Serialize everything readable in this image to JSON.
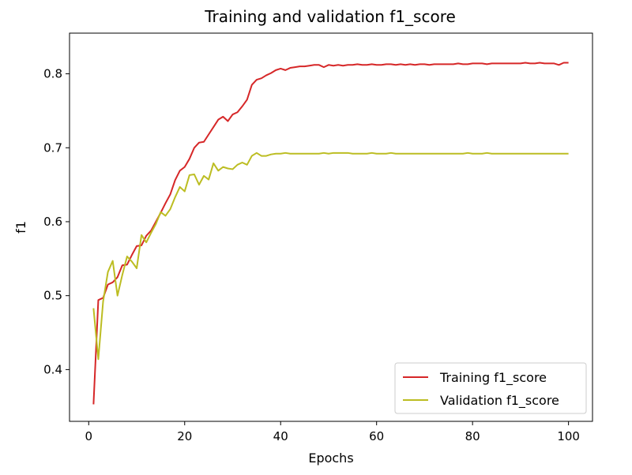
{
  "chart_data": {
    "type": "line",
    "title": "Training and validation f1_score",
    "xlabel": "Epochs",
    "ylabel": "f1",
    "xlim": [
      -4,
      105
    ],
    "ylim": [
      0.33,
      0.855
    ],
    "xticks": [
      0,
      20,
      40,
      60,
      80,
      100
    ],
    "yticks": [
      0.4,
      0.5,
      0.6,
      0.7,
      0.8
    ],
    "xtick_labels": [
      "0",
      "20",
      "40",
      "60",
      "80",
      "100"
    ],
    "ytick_labels": [
      "0.4",
      "0.5",
      "0.6",
      "0.7",
      "0.8"
    ],
    "grid": false,
    "legend_position": "lower-right",
    "x": [
      1,
      2,
      3,
      4,
      5,
      6,
      7,
      8,
      9,
      10,
      11,
      12,
      13,
      14,
      15,
      16,
      17,
      18,
      19,
      20,
      21,
      22,
      23,
      24,
      25,
      26,
      27,
      28,
      29,
      30,
      31,
      32,
      33,
      34,
      35,
      36,
      37,
      38,
      39,
      40,
      41,
      42,
      43,
      44,
      45,
      46,
      47,
      48,
      49,
      50,
      51,
      52,
      53,
      54,
      55,
      56,
      57,
      58,
      59,
      60,
      61,
      62,
      63,
      64,
      65,
      66,
      67,
      68,
      69,
      70,
      71,
      72,
      73,
      74,
      75,
      76,
      77,
      78,
      79,
      80,
      81,
      82,
      83,
      84,
      85,
      86,
      87,
      88,
      89,
      90,
      91,
      92,
      93,
      94,
      95,
      96,
      97,
      98,
      99,
      100
    ],
    "series": [
      {
        "name": "Training f1_score",
        "color": "#d62728",
        "values": [
          0.353,
          0.494,
          0.497,
          0.515,
          0.518,
          0.525,
          0.541,
          0.542,
          0.555,
          0.567,
          0.568,
          0.581,
          0.588,
          0.6,
          0.612,
          0.625,
          0.637,
          0.656,
          0.669,
          0.674,
          0.685,
          0.7,
          0.707,
          0.708,
          0.718,
          0.728,
          0.738,
          0.742,
          0.736,
          0.745,
          0.748,
          0.756,
          0.765,
          0.785,
          0.792,
          0.794,
          0.798,
          0.801,
          0.805,
          0.807,
          0.805,
          0.808,
          0.809,
          0.81,
          0.81,
          0.811,
          0.812,
          0.812,
          0.809,
          0.812,
          0.811,
          0.812,
          0.811,
          0.812,
          0.812,
          0.813,
          0.812,
          0.812,
          0.813,
          0.812,
          0.812,
          0.813,
          0.813,
          0.812,
          0.813,
          0.812,
          0.813,
          0.812,
          0.813,
          0.813,
          0.812,
          0.813,
          0.813,
          0.813,
          0.813,
          0.813,
          0.814,
          0.813,
          0.813,
          0.814,
          0.814,
          0.814,
          0.813,
          0.814,
          0.814,
          0.814,
          0.814,
          0.814,
          0.814,
          0.814,
          0.815,
          0.814,
          0.814,
          0.815,
          0.814,
          0.814,
          0.814,
          0.812,
          0.815,
          0.815
        ]
      },
      {
        "name": "Validation f1_score",
        "color": "#bcbd22",
        "values": [
          0.483,
          0.414,
          0.492,
          0.532,
          0.547,
          0.5,
          0.528,
          0.553,
          0.546,
          0.537,
          0.582,
          0.572,
          0.585,
          0.597,
          0.613,
          0.608,
          0.617,
          0.633,
          0.647,
          0.641,
          0.663,
          0.664,
          0.65,
          0.662,
          0.657,
          0.679,
          0.669,
          0.674,
          0.672,
          0.671,
          0.677,
          0.68,
          0.677,
          0.689,
          0.693,
          0.689,
          0.689,
          0.691,
          0.692,
          0.692,
          0.693,
          0.692,
          0.692,
          0.692,
          0.692,
          0.692,
          0.692,
          0.692,
          0.693,
          0.692,
          0.693,
          0.693,
          0.693,
          0.693,
          0.692,
          0.692,
          0.692,
          0.692,
          0.693,
          0.692,
          0.692,
          0.692,
          0.693,
          0.692,
          0.692,
          0.692,
          0.692,
          0.692,
          0.692,
          0.692,
          0.692,
          0.692,
          0.692,
          0.692,
          0.692,
          0.692,
          0.692,
          0.692,
          0.693,
          0.692,
          0.692,
          0.692,
          0.693,
          0.692,
          0.692,
          0.692,
          0.692,
          0.692,
          0.692,
          0.692,
          0.692,
          0.692,
          0.692,
          0.692,
          0.692,
          0.692,
          0.692,
          0.692,
          0.692,
          0.692
        ]
      }
    ]
  }
}
